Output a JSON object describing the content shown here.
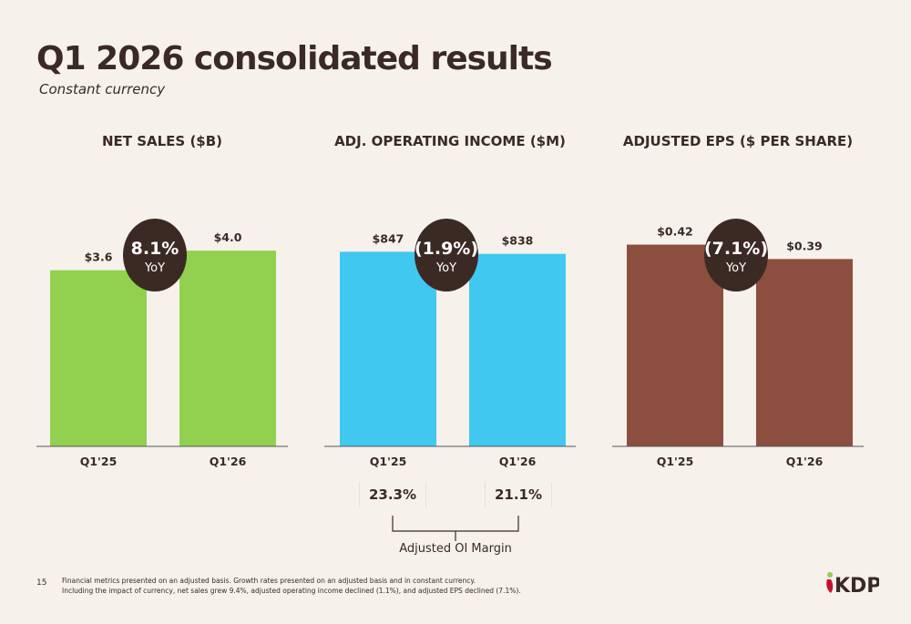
{
  "page": {
    "title": "Q1 2026 consolidated results",
    "subtitle": "Constant currency",
    "page_number": "15",
    "footnote_line1": "Financial metrics presented on an adjusted basis. Growth rates presented on an adjusted basis and in constant currency.",
    "footnote_line2": "Including the impact of currency, net sales grew 9.4%, adjusted operating income declined (1.1%), and adjusted EPS declined (7.1%).",
    "logo_text": "KDP"
  },
  "chart_data": [
    {
      "type": "bar",
      "title": "NET SALES ($B)",
      "categories": [
        "Q1'25",
        "Q1'26"
      ],
      "values": [
        3.6,
        4.0
      ],
      "value_labels": [
        "$3.6",
        "$4.0"
      ],
      "ylim": [
        0,
        5.4
      ],
      "color": "#92d050",
      "yoy": {
        "value": "8.1%",
        "label": "YoY"
      }
    },
    {
      "type": "bar",
      "title": "ADJ. OPERATING INCOME ($M)",
      "categories": [
        "Q1'25",
        "Q1'26"
      ],
      "values": [
        847,
        838
      ],
      "value_labels": [
        "$847",
        "$838"
      ],
      "ylim": [
        0,
        1150
      ],
      "color": "#40c8f0",
      "yoy": {
        "value": "(1.9%)",
        "label": "YoY"
      },
      "margins": {
        "values": [
          "23.3%",
          "21.1%"
        ],
        "label": "Adjusted OI Margin"
      }
    },
    {
      "type": "bar",
      "title": "ADJUSTED EPS ($ PER SHARE)",
      "categories": [
        "Q1'25",
        "Q1'26"
      ],
      "values": [
        0.42,
        0.39
      ],
      "value_labels": [
        "$0.42",
        "$0.39"
      ],
      "ylim": [
        0,
        0.55
      ],
      "color": "#8c4e3e",
      "yoy": {
        "value": "(7.1%)",
        "label": "YoY"
      }
    }
  ],
  "colors": {
    "badge": "#3b2a24",
    "axis": "#555555",
    "background": "#f6f1eb"
  }
}
